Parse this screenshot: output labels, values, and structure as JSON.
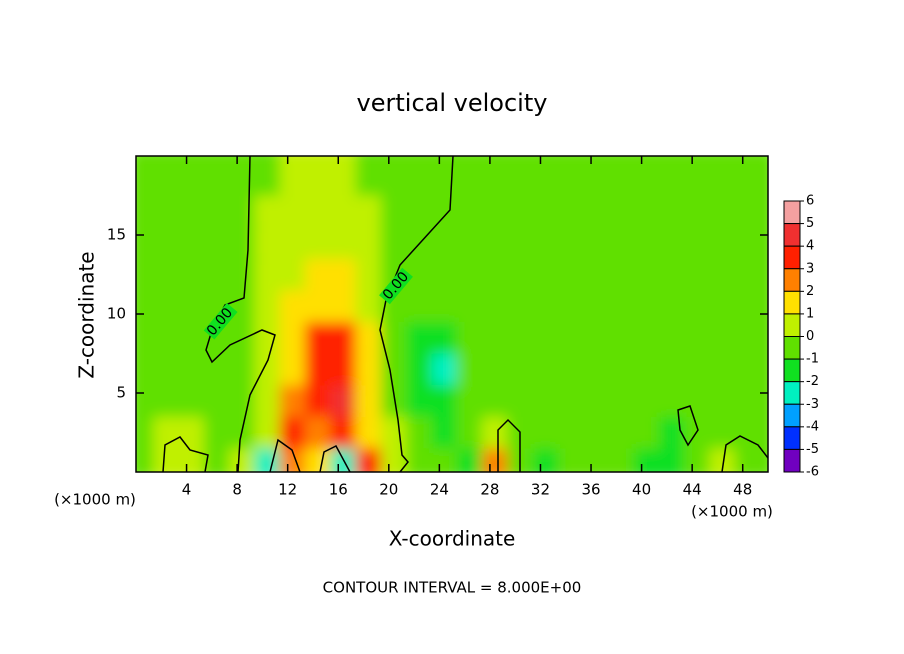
{
  "chart_data": {
    "type": "contour",
    "title": "vertical velocity",
    "x_label": "X-coordinate",
    "y_label": "Z-coordinate",
    "x_unit": "(×1000 m)",
    "footer": "CONTOUR INTERVAL = 8.000E+00",
    "contour_label": "0.00",
    "xlim": [
      0,
      50
    ],
    "ylim": [
      0,
      20
    ],
    "xticks": [
      4,
      8,
      12,
      16,
      20,
      24,
      28,
      32,
      36,
      40,
      44,
      48
    ],
    "yticks": [
      5,
      10,
      15
    ],
    "x": [
      1,
      3,
      5,
      7,
      9,
      11,
      13,
      15,
      17,
      19,
      21,
      23,
      25,
      27,
      29,
      31,
      33,
      35,
      37,
      39,
      41,
      43,
      45,
      47,
      49
    ],
    "z": [
      1,
      3,
      5,
      7,
      9,
      11,
      13,
      15,
      17,
      19
    ],
    "values": [
      [
        -0.6,
        0.6,
        0.4,
        -0.6,
        0.3,
        -2.5,
        2.5,
        1.5,
        -2.5,
        3.5,
        0.3,
        -0.8,
        -0.8,
        -1.2,
        2.5,
        -0.8,
        -1.2,
        -0.6,
        -0.4,
        -0.5,
        -1.2,
        -1.5,
        -0.5,
        0.3,
        -0.5
      ],
      [
        -0.5,
        0.2,
        0.2,
        -0.5,
        -0.3,
        0.8,
        3.2,
        2.5,
        3.0,
        1.5,
        0.3,
        -1.0,
        -1.5,
        -0.8,
        0.8,
        -0.6,
        -0.5,
        -0.4,
        -0.3,
        -0.4,
        -0.8,
        -1.5,
        -0.6,
        -0.3,
        -0.4
      ],
      [
        -0.6,
        -0.7,
        -0.7,
        -0.6,
        -0.3,
        0.5,
        2.0,
        3.5,
        4.6,
        1.5,
        -0.5,
        -1.5,
        -1.8,
        -0.9,
        -0.5,
        -0.5,
        -0.4,
        -0.4,
        -0.3,
        -0.5,
        -0.8,
        -0.9,
        -0.7,
        -0.5,
        -0.5
      ],
      [
        -0.7,
        -0.8,
        -0.8,
        -0.7,
        -0.4,
        0.3,
        1.5,
        3.5,
        3.8,
        1.5,
        -0.5,
        -1.6,
        -2.1,
        -1.0,
        -0.6,
        -0.5,
        -0.4,
        -0.3,
        -0.3,
        -0.5,
        -0.6,
        -0.7,
        -0.6,
        -0.5,
        -0.5
      ],
      [
        -0.7,
        -0.8,
        -0.8,
        -0.6,
        -0.3,
        0.4,
        1.8,
        3.2,
        3.0,
        1.2,
        -0.4,
        -1.3,
        -1.5,
        -0.9,
        -0.6,
        -0.5,
        -0.4,
        -0.3,
        -0.3,
        -0.4,
        -0.5,
        -0.6,
        -0.6,
        -0.5,
        -0.5
      ],
      [
        -0.6,
        -0.7,
        -0.7,
        -0.5,
        -0.2,
        0.5,
        1.4,
        1.8,
        1.6,
        0.8,
        -0.3,
        -0.7,
        -0.8,
        -0.6,
        -0.5,
        -0.4,
        -0.3,
        -0.3,
        -0.3,
        -0.3,
        -0.4,
        -0.5,
        -0.6,
        -0.5,
        -0.5
      ],
      [
        -0.5,
        -0.6,
        -0.6,
        -0.4,
        -0.2,
        0.3,
        0.9,
        1.2,
        1.0,
        0.5,
        -0.2,
        -0.4,
        -0.5,
        -0.4,
        -0.4,
        -0.3,
        -0.3,
        -0.3,
        -0.3,
        -0.3,
        -0.3,
        -0.4,
        -0.4,
        -0.4,
        -0.4
      ],
      [
        -0.4,
        -0.4,
        -0.4,
        -0.3,
        -0.2,
        0.2,
        0.6,
        0.8,
        0.7,
        0.4,
        -0.1,
        -0.2,
        -0.3,
        -0.3,
        -0.3,
        -0.3,
        -0.3,
        -0.3,
        -0.3,
        -0.3,
        -0.3,
        -0.3,
        -0.3,
        -0.3,
        -0.3
      ],
      [
        -0.3,
        -0.3,
        -0.3,
        -0.3,
        -0.2,
        0.1,
        0.4,
        0.5,
        0.5,
        0.2,
        -0.1,
        -0.2,
        -0.2,
        -0.2,
        -0.2,
        -0.2,
        -0.2,
        -0.2,
        -0.2,
        -0.2,
        -0.2,
        -0.2,
        -0.2,
        -0.2,
        -0.2
      ],
      [
        -0.2,
        -0.2,
        -0.2,
        -0.2,
        -0.2,
        -0.1,
        0.2,
        0.2,
        0.2,
        -0.1,
        -0.2,
        -0.2,
        -0.2,
        -0.2,
        -0.2,
        -0.2,
        -0.2,
        -0.2,
        -0.2,
        -0.2,
        -0.2,
        -0.2,
        -0.2,
        -0.2,
        -0.2
      ]
    ],
    "colorbar": {
      "levels": [
        6,
        5,
        4,
        3,
        2,
        1,
        0,
        -1,
        -2,
        -3,
        -4,
        -5,
        -6
      ],
      "colors": [
        "#f4a0a0",
        "#f03030",
        "#ff2000",
        "#ff8000",
        "#ffe000",
        "#c0f000",
        "#60e000",
        "#10e020",
        "#00f0c0",
        "#00a0ff",
        "#0030ff",
        "#7000c0"
      ]
    }
  }
}
